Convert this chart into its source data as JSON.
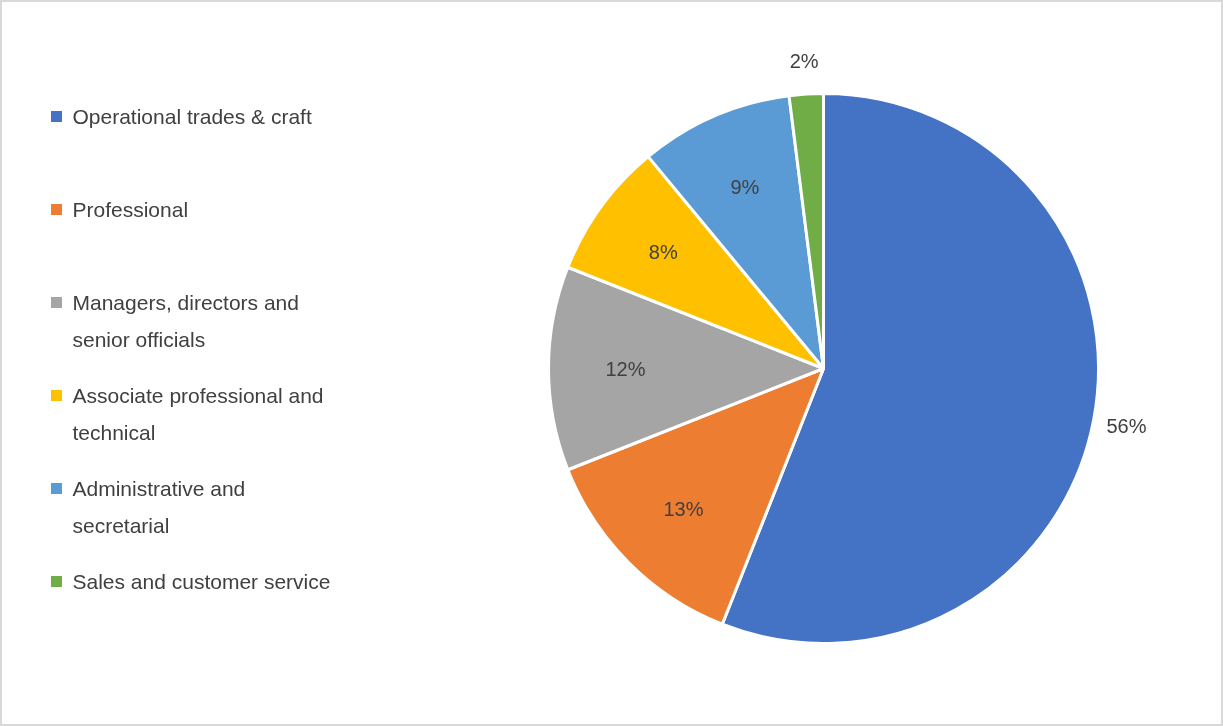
{
  "chart_data": {
    "type": "pie",
    "categories": [
      "Operational trades & craft",
      "Professional",
      "Managers, directors and senior officials",
      "Associate professional and technical",
      "Administrative and secretarial",
      "Sales and customer service"
    ],
    "values": [
      56,
      13,
      12,
      8,
      9,
      2
    ],
    "colors": [
      "#4472c4",
      "#ed7d31",
      "#a5a5a5",
      "#ffc000",
      "#5b9bd5",
      "#70ad47"
    ],
    "value_labels": [
      "56%",
      "13%",
      "12%",
      "8%",
      "9%",
      "2%"
    ],
    "legend": "left"
  }
}
